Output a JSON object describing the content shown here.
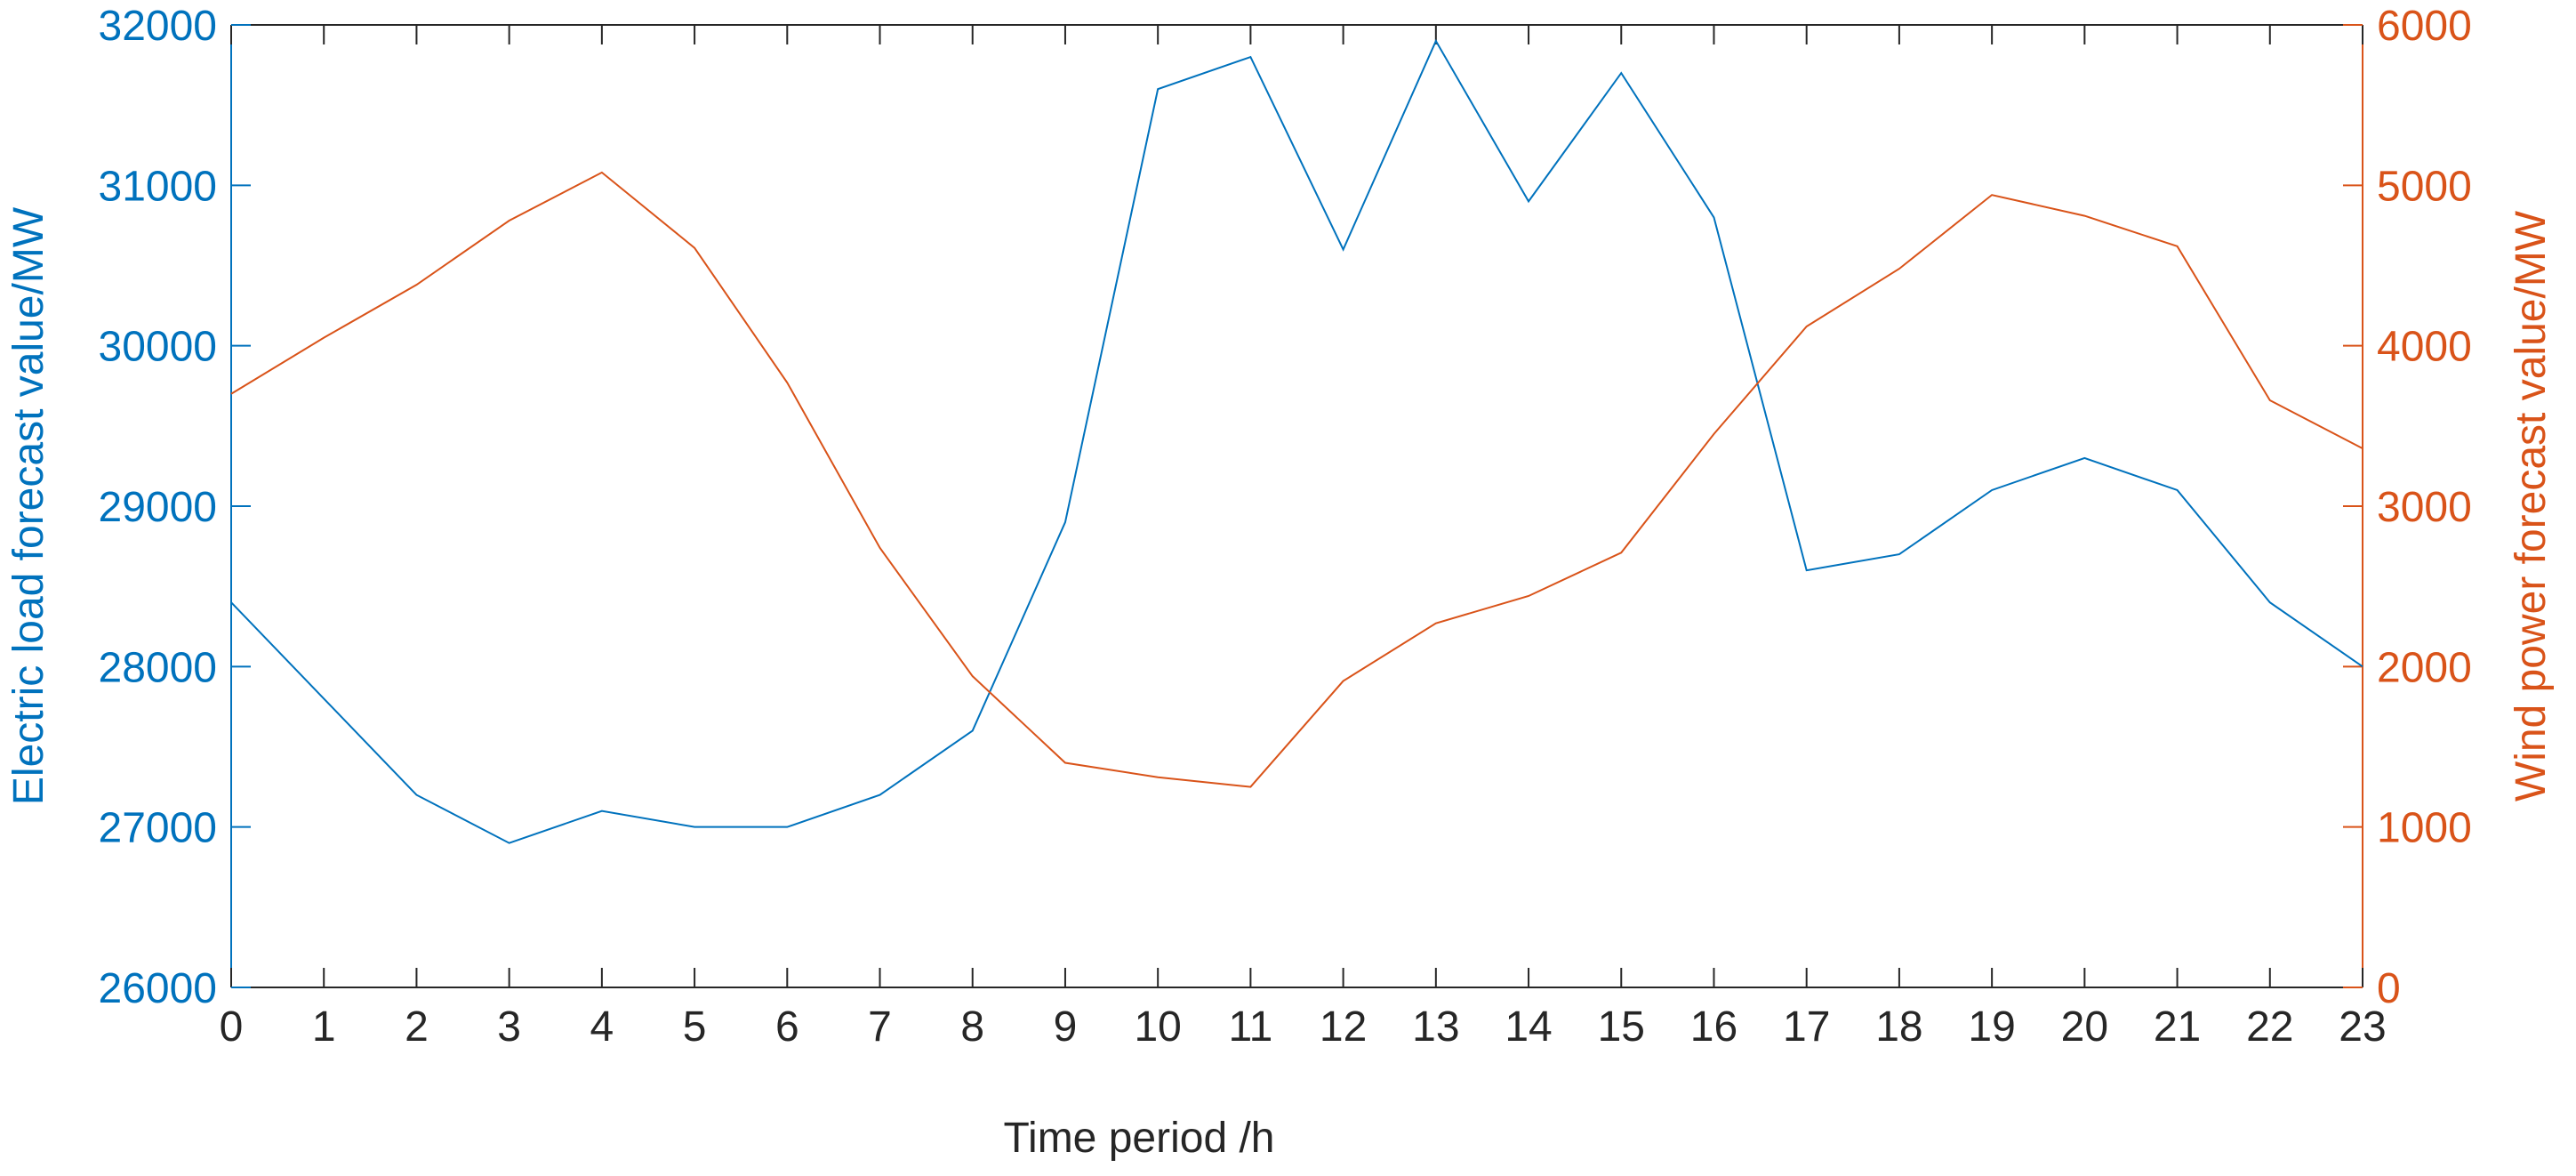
{
  "chart_data": {
    "type": "line",
    "xlabel": "Time period /h",
    "ylabel": "Electric load forecast value/MW",
    "y2label": "Wind power forecast value/MW",
    "x": [
      0,
      1,
      2,
      3,
      4,
      5,
      6,
      7,
      8,
      9,
      10,
      11,
      12,
      13,
      14,
      15,
      16,
      17,
      18,
      19,
      20,
      21,
      22,
      23
    ],
    "xlim": [
      0,
      23
    ],
    "xticks": [
      0,
      1,
      2,
      3,
      4,
      5,
      6,
      7,
      8,
      9,
      10,
      11,
      12,
      13,
      14,
      15,
      16,
      17,
      18,
      19,
      20,
      21,
      22,
      23
    ],
    "ylim": [
      26000,
      32000
    ],
    "yticks": [
      26000,
      27000,
      28000,
      29000,
      30000,
      31000,
      32000
    ],
    "y2lim": [
      0,
      6000
    ],
    "y2ticks": [
      0,
      1000,
      2000,
      3000,
      4000,
      5000,
      6000
    ],
    "ycolor": "#0072bd",
    "y2color": "#d95319",
    "series": [
      {
        "color": "#0072bd",
        "values": [
          28400,
          27800,
          27200,
          26900,
          27100,
          27000,
          27000,
          27200,
          27600,
          28900,
          31600,
          31800,
          30600,
          31900,
          30900,
          31700,
          30800,
          28600,
          28700,
          29100,
          29300,
          29100,
          28400,
          28000
        ]
      },
      {
        "color": "#d95319",
        "axis": "y2",
        "values": [
          3700,
          4050,
          4380,
          4780,
          5080,
          4610,
          3770,
          2740,
          1940,
          1400,
          1310,
          1250,
          1910,
          2270,
          2440,
          2710,
          3450,
          4120,
          4480,
          4940,
          4810,
          4620,
          3660,
          3360
        ]
      }
    ]
  }
}
